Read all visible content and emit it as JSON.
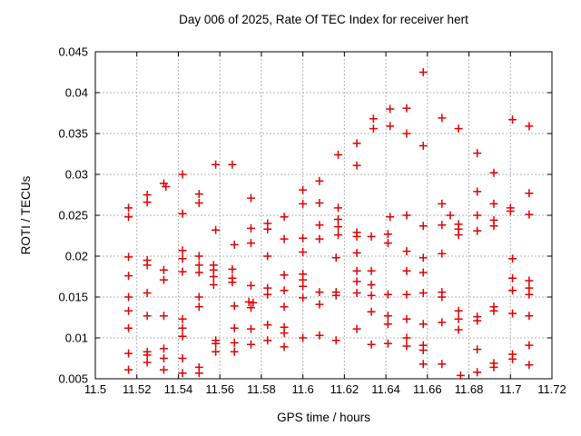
{
  "chart_data": {
    "type": "scatter",
    "title": "Day 006 of 2025, Rate Of TEC Index for receiver hert",
    "xlabel": "GPS time / hours",
    "ylabel": "ROTI / TECUs",
    "xlim": [
      11.5,
      11.72
    ],
    "ylim": [
      0.005,
      0.045
    ],
    "grid": true,
    "legend": "none",
    "marker": {
      "shape": "plus",
      "color": "#e10000",
      "size": 9
    },
    "axis_color": "#000000",
    "grid_color": "#b3b3b3",
    "xticks": {
      "values": [
        11.5,
        11.52,
        11.54,
        11.56,
        11.58,
        11.6,
        11.62,
        11.64,
        11.66,
        11.68,
        11.7,
        11.72
      ],
      "labels": [
        "11.5",
        "11.52",
        "11.54",
        "11.56",
        "11.58",
        "11.6",
        "11.62",
        "11.64",
        "11.66",
        "11.68",
        "11.7",
        "11.72"
      ]
    },
    "yticks": {
      "values": [
        0.005,
        0.01,
        0.015,
        0.02,
        0.025,
        0.03,
        0.035,
        0.04,
        0.045
      ],
      "labels": [
        "0.005",
        "0.01",
        "0.015",
        "0.02",
        "0.025",
        "0.03",
        "0.035",
        "0.04",
        "0.045"
      ]
    },
    "points": [
      [
        11.516,
        0.0259
      ],
      [
        11.516,
        0.0248
      ],
      [
        11.516,
        0.0199
      ],
      [
        11.516,
        0.0176
      ],
      [
        11.516,
        0.015
      ],
      [
        11.516,
        0.0133
      ],
      [
        11.516,
        0.0112
      ],
      [
        11.516,
        0.0081
      ],
      [
        11.516,
        0.0061
      ],
      [
        11.525,
        0.0275
      ],
      [
        11.525,
        0.0266
      ],
      [
        11.525,
        0.0195
      ],
      [
        11.525,
        0.0189
      ],
      [
        11.525,
        0.0155
      ],
      [
        11.525,
        0.0127
      ],
      [
        11.525,
        0.0083
      ],
      [
        11.525,
        0.0079
      ],
      [
        11.525,
        0.007
      ],
      [
        11.533,
        0.0289
      ],
      [
        11.534,
        0.0285
      ],
      [
        11.533,
        0.0183
      ],
      [
        11.533,
        0.0171
      ],
      [
        11.533,
        0.0127
      ],
      [
        11.533,
        0.0087
      ],
      [
        11.533,
        0.0075
      ],
      [
        11.533,
        0.0061
      ],
      [
        11.542,
        0.03
      ],
      [
        11.542,
        0.0252
      ],
      [
        11.542,
        0.0207
      ],
      [
        11.542,
        0.0197
      ],
      [
        11.542,
        0.0181
      ],
      [
        11.542,
        0.0123
      ],
      [
        11.542,
        0.0112
      ],
      [
        11.542,
        0.0102
      ],
      [
        11.542,
        0.0075
      ],
      [
        11.542,
        0.0057
      ],
      [
        11.55,
        0.0276
      ],
      [
        11.55,
        0.0265
      ],
      [
        11.55,
        0.02
      ],
      [
        11.55,
        0.0189
      ],
      [
        11.55,
        0.018
      ],
      [
        11.55,
        0.015
      ],
      [
        11.55,
        0.0138
      ],
      [
        11.55,
        0.0064
      ],
      [
        11.55,
        0.0057
      ],
      [
        11.558,
        0.0312
      ],
      [
        11.558,
        0.0232
      ],
      [
        11.557,
        0.0189
      ],
      [
        11.557,
        0.0183
      ],
      [
        11.557,
        0.0175
      ],
      [
        11.557,
        0.0165
      ],
      [
        11.558,
        0.0097
      ],
      [
        11.558,
        0.0093
      ],
      [
        11.558,
        0.0083
      ],
      [
        11.566,
        0.0312
      ],
      [
        11.567,
        0.0214
      ],
      [
        11.566,
        0.0184
      ],
      [
        11.566,
        0.0173
      ],
      [
        11.566,
        0.0168
      ],
      [
        11.567,
        0.0139
      ],
      [
        11.567,
        0.0112
      ],
      [
        11.567,
        0.0094
      ],
      [
        11.567,
        0.0083
      ],
      [
        11.575,
        0.0271
      ],
      [
        11.575,
        0.0234
      ],
      [
        11.575,
        0.0216
      ],
      [
        11.575,
        0.0164
      ],
      [
        11.574,
        0.0144
      ],
      [
        11.576,
        0.0143
      ],
      [
        11.575,
        0.0137
      ],
      [
        11.575,
        0.0111
      ],
      [
        11.575,
        0.0092
      ],
      [
        11.583,
        0.024
      ],
      [
        11.583,
        0.0233
      ],
      [
        11.583,
        0.02
      ],
      [
        11.583,
        0.0161
      ],
      [
        11.583,
        0.0153
      ],
      [
        11.583,
        0.0116
      ],
      [
        11.583,
        0.0097
      ],
      [
        11.591,
        0.0248
      ],
      [
        11.591,
        0.0221
      ],
      [
        11.591,
        0.0177
      ],
      [
        11.591,
        0.0158
      ],
      [
        11.591,
        0.0138
      ],
      [
        11.591,
        0.0113
      ],
      [
        11.591,
        0.0106
      ],
      [
        11.591,
        0.0089
      ],
      [
        11.6,
        0.0281
      ],
      [
        11.6,
        0.0264
      ],
      [
        11.6,
        0.0222
      ],
      [
        11.6,
        0.0205
      ],
      [
        11.6,
        0.0178
      ],
      [
        11.6,
        0.0171
      ],
      [
        11.6,
        0.0163
      ],
      [
        11.6,
        0.0149
      ],
      [
        11.6,
        0.01
      ],
      [
        11.608,
        0.0292
      ],
      [
        11.608,
        0.0265
      ],
      [
        11.608,
        0.0238
      ],
      [
        11.608,
        0.0221
      ],
      [
        11.608,
        0.0156
      ],
      [
        11.608,
        0.0141
      ],
      [
        11.608,
        0.0103
      ],
      [
        11.617,
        0.0324
      ],
      [
        11.617,
        0.0259
      ],
      [
        11.617,
        0.0245
      ],
      [
        11.617,
        0.0236
      ],
      [
        11.617,
        0.0226
      ],
      [
        11.616,
        0.0198
      ],
      [
        11.616,
        0.0156
      ],
      [
        11.616,
        0.0152
      ],
      [
        11.616,
        0.0097
      ],
      [
        11.626,
        0.0338
      ],
      [
        11.626,
        0.0311
      ],
      [
        11.626,
        0.0229
      ],
      [
        11.626,
        0.0224
      ],
      [
        11.626,
        0.0204
      ],
      [
        11.626,
        0.0182
      ],
      [
        11.626,
        0.0169
      ],
      [
        11.626,
        0.0155
      ],
      [
        11.626,
        0.0111
      ],
      [
        11.634,
        0.0368
      ],
      [
        11.634,
        0.0356
      ],
      [
        11.633,
        0.0224
      ],
      [
        11.633,
        0.0182
      ],
      [
        11.633,
        0.0165
      ],
      [
        11.633,
        0.0152
      ],
      [
        11.633,
        0.0132
      ],
      [
        11.633,
        0.0092
      ],
      [
        11.642,
        0.038
      ],
      [
        11.642,
        0.0359
      ],
      [
        11.642,
        0.0248
      ],
      [
        11.641,
        0.0227
      ],
      [
        11.641,
        0.0216
      ],
      [
        11.641,
        0.0153
      ],
      [
        11.641,
        0.0127
      ],
      [
        11.641,
        0.0117
      ],
      [
        11.641,
        0.0093
      ],
      [
        11.65,
        0.0381
      ],
      [
        11.65,
        0.035
      ],
      [
        11.65,
        0.025
      ],
      [
        11.65,
        0.0206
      ],
      [
        11.65,
        0.0182
      ],
      [
        11.65,
        0.0153
      ],
      [
        11.65,
        0.0123
      ],
      [
        11.65,
        0.01
      ],
      [
        11.65,
        0.009
      ],
      [
        11.658,
        0.0425
      ],
      [
        11.658,
        0.0335
      ],
      [
        11.658,
        0.0237
      ],
      [
        11.658,
        0.0198
      ],
      [
        11.658,
        0.018
      ],
      [
        11.658,
        0.0155
      ],
      [
        11.658,
        0.0117
      ],
      [
        11.658,
        0.0091
      ],
      [
        11.658,
        0.0085
      ],
      [
        11.658,
        0.0068
      ],
      [
        11.667,
        0.0369
      ],
      [
        11.667,
        0.0264
      ],
      [
        11.667,
        0.0238
      ],
      [
        11.667,
        0.0203
      ],
      [
        11.667,
        0.0156
      ],
      [
        11.667,
        0.015
      ],
      [
        11.667,
        0.0119
      ],
      [
        11.667,
        0.0068
      ],
      [
        11.671,
        0.025
      ],
      [
        11.675,
        0.0356
      ],
      [
        11.675,
        0.0239
      ],
      [
        11.675,
        0.0233
      ],
      [
        11.675,
        0.0226
      ],
      [
        11.675,
        0.0133
      ],
      [
        11.675,
        0.0123
      ],
      [
        11.675,
        0.011
      ],
      [
        11.676,
        0.0054
      ],
      [
        11.684,
        0.0326
      ],
      [
        11.684,
        0.0279
      ],
      [
        11.684,
        0.025
      ],
      [
        11.684,
        0.0231
      ],
      [
        11.684,
        0.0126
      ],
      [
        11.684,
        0.0121
      ],
      [
        11.684,
        0.0086
      ],
      [
        11.684,
        0.0058
      ],
      [
        11.692,
        0.0302
      ],
      [
        11.692,
        0.0264
      ],
      [
        11.692,
        0.0244
      ],
      [
        11.692,
        0.0237
      ],
      [
        11.692,
        0.0138
      ],
      [
        11.692,
        0.0133
      ],
      [
        11.692,
        0.0069
      ],
      [
        11.692,
        0.0064
      ],
      [
        11.701,
        0.0367
      ],
      [
        11.7,
        0.0259
      ],
      [
        11.7,
        0.0255
      ],
      [
        11.701,
        0.0197
      ],
      [
        11.701,
        0.0173
      ],
      [
        11.701,
        0.0158
      ],
      [
        11.701,
        0.013
      ],
      [
        11.701,
        0.008
      ],
      [
        11.701,
        0.0074
      ],
      [
        11.709,
        0.0359
      ],
      [
        11.709,
        0.0277
      ],
      [
        11.709,
        0.0251
      ],
      [
        11.709,
        0.017
      ],
      [
        11.709,
        0.0161
      ],
      [
        11.709,
        0.0153
      ],
      [
        11.709,
        0.0127
      ],
      [
        11.709,
        0.0091
      ],
      [
        11.709,
        0.0067
      ]
    ]
  }
}
